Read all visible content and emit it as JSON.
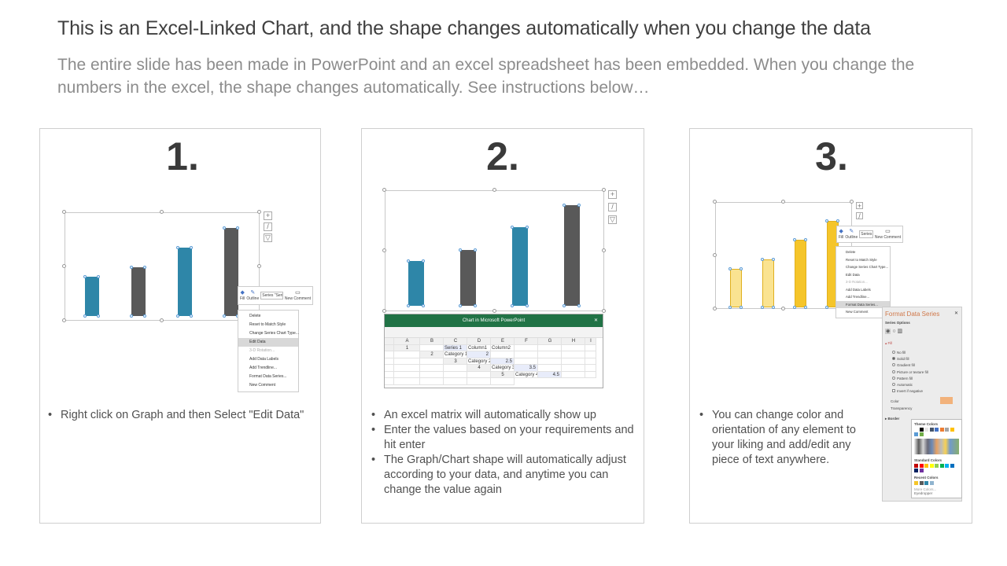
{
  "title": "This is an Excel-Linked Chart, and the shape changes automatically when you change the data",
  "subtitle": "The entire slide has been made in PowerPoint and an excel spreadsheet has been embedded. When you change the numbers in the excel, the shape changes automatically. See instructions below…",
  "colors": {
    "teal": "#2e86a8",
    "dark": "#595959",
    "yellow": "#f5c52a",
    "light_yellow": "#fae391",
    "excel_green": "#217346",
    "accent_orange": "#e0893c"
  },
  "steps": [
    {
      "number": "1.",
      "bullets": [
        "Right click on Graph and then Select \"Edit Data\""
      ]
    },
    {
      "number": "2.",
      "bullets": [
        "An excel matrix will automatically show up",
        "Enter the values based on your requirements and hit enter",
        "The Graph/Chart shape will automatically adjust according to your data, and anytime you can change the value again"
      ]
    },
    {
      "number": "3.",
      "bullets": [
        "You can change color and orientation of any element to your liking and add/edit any piece of text anywhere."
      ]
    }
  ],
  "mini_toolbar": {
    "fill": "Fill",
    "outline": "Outline",
    "series_select": "Series \"Series 1\"",
    "new_comment": "New Comment"
  },
  "context_menu": [
    "Delete",
    "Reset to Match Style",
    "Change Series Chart Type...",
    "Edit Data",
    "3-D Rotation...",
    "Add Data Labels",
    "Add Trendline...",
    "Format Data Series...",
    "New Comment"
  ],
  "excel": {
    "window_title": "Chart in Microsoft PowerPoint",
    "columns": [
      "A",
      "B",
      "C",
      "D",
      "E",
      "F",
      "G",
      "H",
      "I"
    ],
    "header_row": [
      "",
      "Series 1",
      "Column1",
      "Column2"
    ],
    "rows": [
      [
        "Category 1",
        "2"
      ],
      [
        "Category 2",
        "2.5"
      ],
      [
        "Category 3",
        "3.5"
      ],
      [
        "Category 4",
        "4.5"
      ]
    ]
  },
  "format_pane": {
    "title": "Format Data Series",
    "series_options": "Series Options",
    "fill_header": "Fill",
    "fill_options": [
      "No fill",
      "Solid fill",
      "Gradient fill",
      "Picture or texture fill",
      "Pattern fill",
      "Automatic",
      "Invert if negative"
    ],
    "color_label": "Color",
    "transparency_label": "Transparency",
    "border_label": "Border",
    "theme_colors": "Theme Colors",
    "standard_colors": "Standard Colors",
    "recent_colors": "Recent Colors",
    "more_colors": "More Colors...",
    "eyedropper": "Eyedropper"
  },
  "chart_values": [
    2,
    2.5,
    3.5,
    4.5
  ]
}
